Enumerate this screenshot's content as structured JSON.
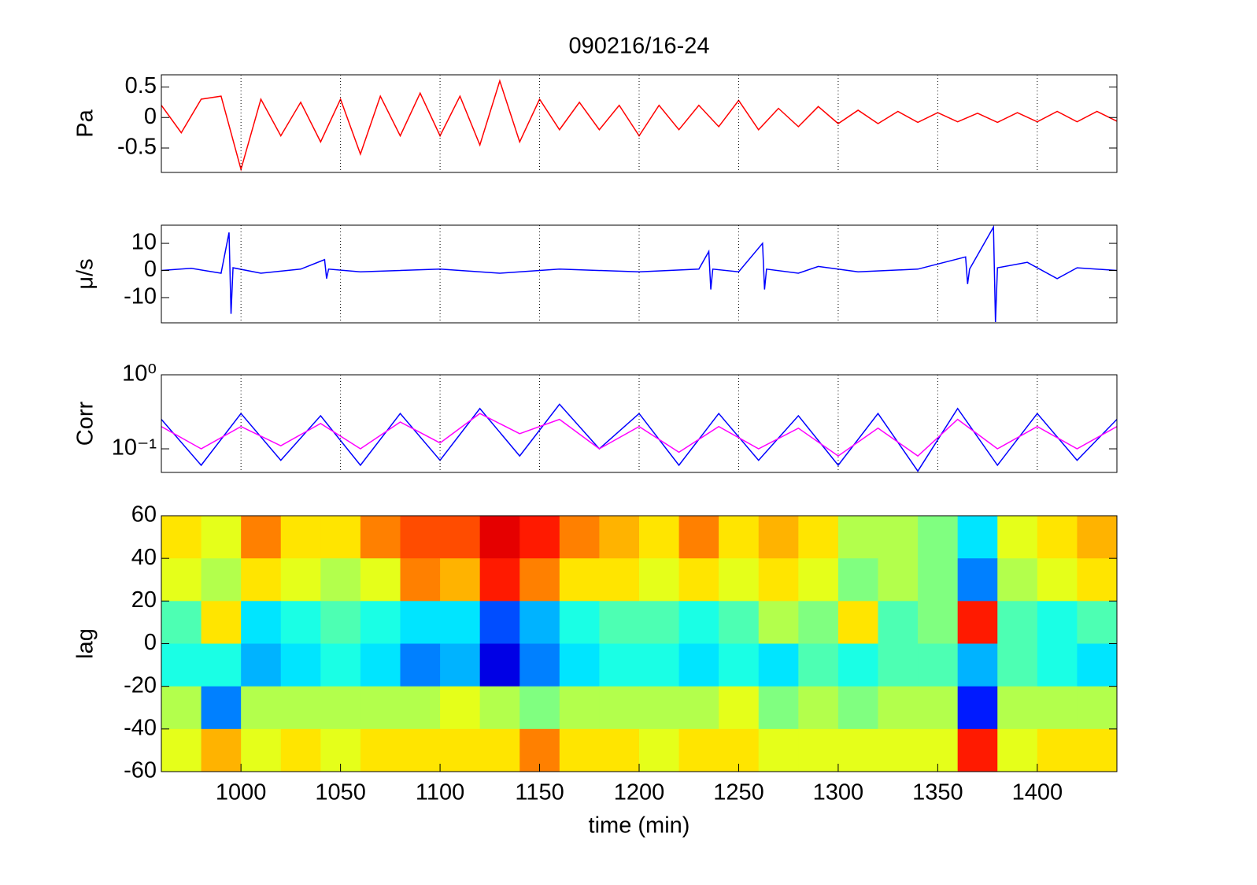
{
  "chart_data": [
    {
      "type": "line",
      "title": "090216/16-24",
      "ylabel": "Pa",
      "color": "#ff0000",
      "xlim": [
        960,
        1440
      ],
      "ylim": [
        -0.9,
        0.7
      ],
      "yticks": [
        -0.5,
        0,
        0.5
      ],
      "grid": true,
      "x": [
        960,
        970,
        980,
        990,
        1000,
        1010,
        1020,
        1030,
        1040,
        1050,
        1060,
        1070,
        1080,
        1090,
        1100,
        1110,
        1120,
        1130,
        1140,
        1150,
        1160,
        1170,
        1180,
        1190,
        1200,
        1210,
        1220,
        1230,
        1240,
        1250,
        1260,
        1270,
        1280,
        1290,
        1300,
        1310,
        1320,
        1330,
        1340,
        1350,
        1360,
        1370,
        1380,
        1390,
        1400,
        1410,
        1420,
        1430,
        1440
      ],
      "values": [
        0.2,
        -0.25,
        0.3,
        0.35,
        -0.85,
        0.3,
        -0.3,
        0.25,
        -0.4,
        0.3,
        -0.6,
        0.35,
        -0.3,
        0.4,
        -0.3,
        0.35,
        -0.45,
        0.6,
        -0.4,
        0.3,
        -0.2,
        0.25,
        -0.2,
        0.2,
        -0.3,
        0.2,
        -0.2,
        0.2,
        -0.15,
        0.28,
        -0.2,
        0.15,
        -0.15,
        0.18,
        -0.1,
        0.12,
        -0.1,
        0.1,
        -0.08,
        0.08,
        -0.07,
        0.07,
        -0.08,
        0.08,
        -0.07,
        0.1,
        -0.07,
        0.1,
        -0.06
      ]
    },
    {
      "type": "line",
      "ylabel": "μ/s",
      "color": "#0000ff",
      "xlim": [
        960,
        1440
      ],
      "ylim": [
        -19.3,
        16.7
      ],
      "yticks": [
        -10,
        0,
        10
      ],
      "grid": true,
      "x": [
        960,
        975,
        990,
        994,
        995,
        996,
        1010,
        1030,
        1042,
        1043,
        1044,
        1060,
        1100,
        1130,
        1160,
        1200,
        1230,
        1235,
        1236,
        1237,
        1250,
        1262,
        1263,
        1264,
        1280,
        1290,
        1310,
        1340,
        1364,
        1365,
        1366,
        1378,
        1379,
        1380,
        1395,
        1410,
        1420,
        1440
      ],
      "values": [
        0,
        0.8,
        -1,
        14,
        -16,
        1,
        -1,
        0.5,
        4,
        -3,
        0.5,
        -0.5,
        0.5,
        -1,
        0.5,
        -0.5,
        0.5,
        7,
        -7,
        0.5,
        -0.5,
        10,
        -7,
        0.5,
        -1,
        1.5,
        -0.5,
        0.5,
        5,
        -5,
        0.5,
        16,
        -19,
        1,
        3,
        -3,
        1,
        0
      ]
    },
    {
      "type": "line",
      "ylabel": "Corr",
      "yscale": "log",
      "xlim": [
        960,
        1440
      ],
      "ylim": [
        0.048,
        1
      ],
      "yticks": [
        {
          "value": 0.1,
          "label": "10⁻¹"
        },
        {
          "value": 1,
          "label": "10⁰"
        }
      ],
      "grid": true,
      "x": [
        960,
        980,
        1000,
        1020,
        1040,
        1060,
        1080,
        1100,
        1120,
        1140,
        1160,
        1180,
        1200,
        1220,
        1240,
        1260,
        1280,
        1300,
        1320,
        1340,
        1360,
        1380,
        1400,
        1420,
        1440
      ],
      "series": [
        {
          "color": "#0000ff",
          "values": [
            0.25,
            0.06,
            0.3,
            0.07,
            0.28,
            0.06,
            0.3,
            0.07,
            0.35,
            0.08,
            0.4,
            0.1,
            0.3,
            0.06,
            0.3,
            0.07,
            0.28,
            0.06,
            0.3,
            0.05,
            0.35,
            0.06,
            0.3,
            0.07,
            0.25
          ]
        },
        {
          "color": "#ff00ff",
          "values": [
            0.2,
            0.1,
            0.2,
            0.11,
            0.22,
            0.1,
            0.23,
            0.12,
            0.3,
            0.16,
            0.25,
            0.1,
            0.2,
            0.09,
            0.2,
            0.1,
            0.19,
            0.08,
            0.19,
            0.08,
            0.25,
            0.1,
            0.2,
            0.1,
            0.2
          ]
        }
      ]
    },
    {
      "type": "heatmap",
      "ylabel": "lag",
      "xlabel": "time (min)",
      "colormap": "jet",
      "zlim": [
        -1,
        1
      ],
      "xlim": [
        960,
        1440
      ],
      "ylim": [
        -60,
        60
      ],
      "xticks": [
        1000,
        1050,
        1100,
        1150,
        1200,
        1250,
        1300,
        1350,
        1400
      ],
      "yticks": [
        -60,
        -40,
        -20,
        0,
        20,
        40,
        60
      ],
      "x": [
        970,
        990,
        1010,
        1030,
        1050,
        1070,
        1090,
        1110,
        1130,
        1150,
        1170,
        1190,
        1210,
        1230,
        1250,
        1270,
        1290,
        1310,
        1330,
        1350,
        1370,
        1390,
        1410,
        1430
      ],
      "y": [
        50,
        30,
        10,
        -10,
        -30,
        -50
      ],
      "z": [
        [
          0.3,
          0.2,
          0.5,
          0.3,
          0.3,
          0.5,
          0.6,
          0.6,
          0.8,
          0.7,
          0.5,
          0.4,
          0.3,
          0.5,
          0.3,
          0.4,
          0.3,
          0.1,
          0.1,
          0.0,
          -0.3,
          0.2,
          0.3,
          0.4
        ],
        [
          0.2,
          0.1,
          0.3,
          0.2,
          0.1,
          0.2,
          0.5,
          0.4,
          0.7,
          0.5,
          0.3,
          0.3,
          0.2,
          0.3,
          0.2,
          0.3,
          0.2,
          0.0,
          0.1,
          0.0,
          -0.5,
          0.1,
          0.2,
          0.3
        ],
        [
          -0.1,
          0.3,
          -0.3,
          -0.2,
          -0.1,
          -0.2,
          -0.3,
          -0.3,
          -0.6,
          -0.4,
          -0.2,
          -0.1,
          -0.1,
          -0.2,
          -0.1,
          0.1,
          0.0,
          0.3,
          -0.1,
          0.0,
          0.7,
          -0.1,
          -0.2,
          -0.1
        ],
        [
          -0.2,
          -0.2,
          -0.4,
          -0.3,
          -0.2,
          -0.3,
          -0.5,
          -0.4,
          -0.8,
          -0.5,
          -0.3,
          -0.2,
          -0.2,
          -0.3,
          -0.2,
          -0.3,
          -0.1,
          -0.2,
          -0.1,
          -0.1,
          -0.4,
          -0.1,
          -0.2,
          -0.3
        ],
        [
          0.1,
          -0.5,
          0.1,
          0.1,
          0.1,
          0.1,
          0.1,
          0.2,
          0.1,
          0.0,
          0.1,
          0.1,
          0.1,
          0.1,
          0.2,
          0.0,
          0.1,
          0.0,
          0.1,
          0.1,
          -0.7,
          0.1,
          0.1,
          0.1
        ],
        [
          0.2,
          0.4,
          0.2,
          0.3,
          0.2,
          0.3,
          0.3,
          0.3,
          0.3,
          0.5,
          0.3,
          0.3,
          0.2,
          0.3,
          0.3,
          0.2,
          0.2,
          0.2,
          0.2,
          0.2,
          0.7,
          0.2,
          0.3,
          0.3
        ]
      ]
    }
  ]
}
